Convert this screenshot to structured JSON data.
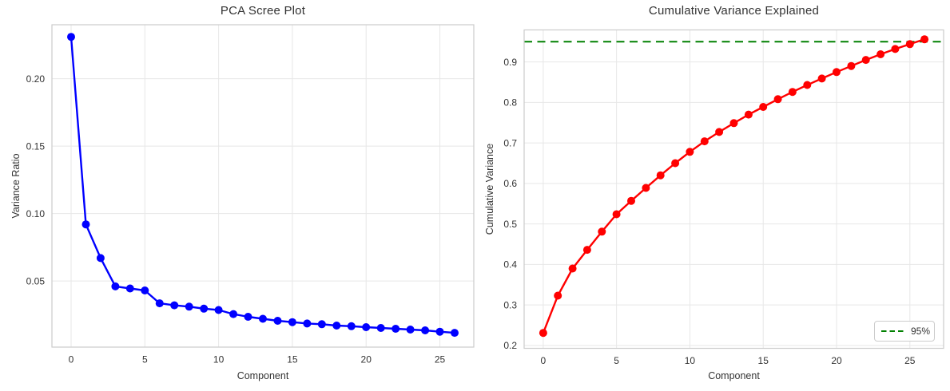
{
  "figure": {
    "background": "#ffffff",
    "text_color": "#333333",
    "grid_color": "#e7e7e7",
    "spine_color": "#cccccc",
    "tick_color": "#333333"
  },
  "chart_data": [
    {
      "type": "line",
      "title": "PCA Scree Plot",
      "xlabel": "Component",
      "ylabel": "Variance Ratio",
      "series_color": "#0000ff",
      "marker": "circle",
      "x": [
        0,
        1,
        2,
        3,
        4,
        5,
        6,
        7,
        8,
        9,
        10,
        11,
        12,
        13,
        14,
        15,
        16,
        17,
        18,
        19,
        20,
        21,
        22,
        23,
        24,
        25,
        26
      ],
      "values": [
        0.231,
        0.092,
        0.067,
        0.046,
        0.0445,
        0.043,
        0.0335,
        0.032,
        0.031,
        0.0295,
        0.0285,
        0.0255,
        0.0235,
        0.022,
        0.0205,
        0.0195,
        0.0185,
        0.018,
        0.017,
        0.0165,
        0.0158,
        0.0152,
        0.0146,
        0.014,
        0.0134,
        0.0124,
        0.0116
      ],
      "xticks": {
        "values": [
          0,
          5,
          10,
          15,
          20,
          25
        ],
        "labels": [
          "0",
          "5",
          "10",
          "15",
          "20",
          "25"
        ]
      },
      "yticks": {
        "values": [
          0.05,
          0.1,
          0.15,
          0.2
        ],
        "labels": [
          "0.05",
          "0.10",
          "0.15",
          "0.20"
        ]
      },
      "xlim": [
        -1.3,
        27.3
      ],
      "ylim": [
        0.001,
        0.24
      ],
      "grid": true,
      "legend": null
    },
    {
      "type": "line",
      "title": "Cumulative Variance Explained",
      "xlabel": "Component",
      "ylabel": "Cumulative Variance",
      "series_color": "#ff0000",
      "marker": "circle",
      "x": [
        0,
        1,
        2,
        3,
        4,
        5,
        6,
        7,
        8,
        9,
        10,
        11,
        12,
        13,
        14,
        15,
        16,
        17,
        18,
        19,
        20,
        21,
        22,
        23,
        24,
        25,
        26
      ],
      "values": [
        0.231,
        0.323,
        0.39,
        0.436,
        0.481,
        0.524,
        0.557,
        0.589,
        0.62,
        0.65,
        0.678,
        0.704,
        0.727,
        0.749,
        0.77,
        0.789,
        0.808,
        0.826,
        0.843,
        0.859,
        0.875,
        0.89,
        0.905,
        0.919,
        0.932,
        0.944,
        0.956
      ],
      "hline": {
        "value": 0.95,
        "color": "#008000",
        "style": "dashed"
      },
      "legend": {
        "label": "95%",
        "position": "lower right"
      },
      "xticks": {
        "values": [
          0,
          5,
          10,
          15,
          20,
          25
        ],
        "labels": [
          "0",
          "5",
          "10",
          "15",
          "20",
          "25"
        ]
      },
      "yticks": {
        "values": [
          0.2,
          0.3,
          0.4,
          0.5,
          0.6,
          0.7,
          0.8,
          0.9
        ],
        "labels": [
          "0.2",
          "0.3",
          "0.4",
          "0.5",
          "0.6",
          "0.7",
          "0.8",
          "0.9"
        ]
      },
      "xlim": [
        -1.3,
        27.3
      ],
      "ylim": [
        0.193,
        0.979
      ],
      "grid": true
    }
  ]
}
